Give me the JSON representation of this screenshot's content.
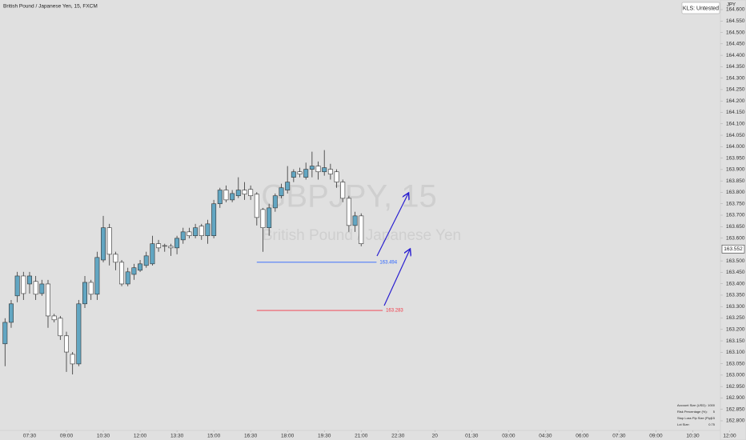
{
  "chart_data": {
    "type": "candlestick",
    "title": "British Pound / Japanese Yen, 15, FXCM",
    "currency": "JPY",
    "watermark_symbol": "GBPJPY, 15",
    "watermark_name": "British Pound / Japanese Yen",
    "badge": "KLS: Untested",
    "up_color": "#62a6c2",
    "down_color": "#ffffff",
    "outline_color": "#333333",
    "x": [
      -4,
      -3,
      -2,
      -1,
      0,
      1,
      2,
      3,
      4,
      5,
      6,
      7,
      8,
      9,
      10,
      11,
      12,
      13,
      14,
      15,
      16,
      17,
      18,
      19,
      20,
      21,
      22,
      23,
      24,
      25,
      26,
      27,
      28,
      29,
      30,
      31,
      32,
      33,
      34,
      35,
      36,
      37,
      38,
      39,
      40,
      41,
      42,
      43,
      44,
      45,
      46,
      47,
      48,
      49,
      50,
      51,
      52,
      53,
      54
    ],
    "open": [
      163.137,
      163.231,
      163.347,
      163.434,
      163.399,
      163.41,
      163.357,
      163.399,
      163.259,
      163.249,
      163.172,
      163.091,
      163.049,
      163.312,
      163.406,
      163.354,
      163.504,
      163.645,
      163.529,
      163.494,
      163.399,
      163.441,
      163.459,
      163.48,
      163.487,
      163.575,
      163.567,
      163.564,
      163.557,
      163.592,
      163.627,
      163.61,
      163.652,
      163.61,
      163.61,
      163.75,
      163.81,
      163.767,
      163.785,
      163.81,
      163.813,
      163.792,
      163.725,
      163.645,
      163.732,
      163.785,
      163.81,
      163.866,
      163.89,
      163.866,
      163.901,
      163.915,
      163.89,
      163.901,
      163.89,
      163.845,
      163.774,
      163.655,
      163.697
    ],
    "high": [
      163.249,
      163.329,
      163.452,
      163.452,
      163.452,
      163.434,
      163.417,
      163.417,
      163.268,
      163.259,
      163.19,
      163.101,
      163.329,
      163.434,
      163.417,
      163.54,
      163.697,
      163.662,
      163.54,
      163.504,
      163.47,
      163.487,
      163.504,
      163.54,
      163.61,
      163.592,
      163.575,
      163.575,
      163.61,
      163.645,
      163.645,
      163.662,
      163.662,
      163.68,
      163.767,
      163.82,
      163.83,
      163.81,
      163.866,
      163.845,
      163.83,
      163.801,
      163.732,
      163.75,
      163.795,
      163.838,
      163.915,
      163.901,
      163.908,
      163.93,
      163.978,
      163.935,
      163.985,
      163.925,
      163.901,
      163.856,
      163.785,
      163.715,
      163.708
    ],
    "low": [
      163.039,
      163.207,
      163.319,
      163.329,
      163.357,
      163.329,
      163.347,
      163.207,
      163.231,
      163.154,
      163.014,
      163.003,
      163.039,
      163.294,
      163.329,
      163.329,
      163.494,
      163.48,
      163.459,
      163.389,
      163.389,
      163.417,
      163.452,
      163.47,
      163.48,
      163.54,
      163.54,
      163.522,
      163.529,
      163.575,
      163.599,
      163.599,
      163.592,
      163.575,
      163.599,
      163.732,
      163.757,
      163.757,
      163.775,
      163.767,
      163.767,
      163.655,
      163.54,
      163.61,
      163.715,
      163.774,
      163.795,
      163.845,
      163.866,
      163.856,
      163.866,
      163.856,
      163.873,
      163.856,
      163.82,
      163.757,
      163.627,
      163.627,
      163.564
    ],
    "close": [
      163.231,
      163.312,
      163.434,
      163.357,
      163.434,
      163.354,
      163.399,
      163.259,
      163.242,
      163.172,
      163.101,
      163.049,
      163.312,
      163.406,
      163.354,
      163.515,
      163.645,
      163.529,
      163.494,
      163.399,
      163.452,
      163.47,
      163.487,
      163.522,
      163.575,
      163.557,
      163.564,
      163.557,
      163.599,
      163.627,
      163.61,
      163.645,
      163.61,
      163.662,
      163.75,
      163.81,
      163.767,
      163.795,
      163.81,
      163.792,
      163.785,
      163.69,
      163.645,
      163.732,
      163.785,
      163.82,
      163.845,
      163.89,
      163.88,
      163.901,
      163.915,
      163.89,
      163.908,
      163.88,
      163.845,
      163.774,
      163.655,
      163.697,
      163.575
    ],
    "last_price": 163.552,
    "horizontal_lines": [
      {
        "price": 163.494,
        "color": "#2962ff",
        "from": 37,
        "to": 56.5
      },
      {
        "price": 163.283,
        "color": "#f23645",
        "from": 37,
        "to": 57.5
      }
    ],
    "xlim": [
      -4.82,
      112.5
    ],
    "xticks": [
      {
        "value": 0,
        "label": "07:30"
      },
      {
        "value": 6,
        "label": "09:00"
      },
      {
        "value": 12,
        "label": "10:30"
      },
      {
        "value": 18,
        "label": "12:00"
      },
      {
        "value": 24,
        "label": "13:30"
      },
      {
        "value": 30,
        "label": "15:00"
      },
      {
        "value": 36,
        "label": "16:30"
      },
      {
        "value": 42,
        "label": "18:00"
      },
      {
        "value": 48,
        "label": "19:30"
      },
      {
        "value": 54,
        "label": "21:00"
      },
      {
        "value": 60,
        "label": "22:30"
      },
      {
        "value": 66,
        "label": "20"
      },
      {
        "value": 72,
        "label": "01:30"
      },
      {
        "value": 78,
        "label": "03:00"
      },
      {
        "value": 84,
        "label": "04:30"
      },
      {
        "value": 90,
        "label": "06:00"
      },
      {
        "value": 96,
        "label": "07:30"
      },
      {
        "value": 102,
        "label": "09:00"
      },
      {
        "value": 108,
        "label": "10:30"
      },
      {
        "value": 114,
        "label": "12:00"
      }
    ],
    "ylim": [
      162.751,
      164.642
    ],
    "yticks": [
      {
        "value": 162.8,
        "label": "162.800"
      },
      {
        "value": 162.85,
        "label": "162.850"
      },
      {
        "value": 162.9,
        "label": "162.900"
      },
      {
        "value": 162.95,
        "label": "162.950"
      },
      {
        "value": 163.0,
        "label": "163.000"
      },
      {
        "value": 163.05,
        "label": "163.050"
      },
      {
        "value": 163.1,
        "label": "163.100"
      },
      {
        "value": 163.15,
        "label": "163.150"
      },
      {
        "value": 163.2,
        "label": "163.200"
      },
      {
        "value": 163.25,
        "label": "163.250"
      },
      {
        "value": 163.3,
        "label": "163.300"
      },
      {
        "value": 163.35,
        "label": "163.350"
      },
      {
        "value": 163.4,
        "label": "163.400"
      },
      {
        "value": 163.45,
        "label": "163.450"
      },
      {
        "value": 163.5,
        "label": "163.500"
      },
      {
        "value": 163.6,
        "label": "163.600"
      },
      {
        "value": 163.65,
        "label": "163.650"
      },
      {
        "value": 163.7,
        "label": "163.700"
      },
      {
        "value": 163.75,
        "label": "163.750"
      },
      {
        "value": 163.8,
        "label": "163.800"
      },
      {
        "value": 163.85,
        "label": "163.850"
      },
      {
        "value": 163.9,
        "label": "163.900"
      },
      {
        "value": 163.95,
        "label": "163.950"
      },
      {
        "value": 164.0,
        "label": "164.000"
      },
      {
        "value": 164.05,
        "label": "164.050"
      },
      {
        "value": 164.1,
        "label": "164.100"
      },
      {
        "value": 164.15,
        "label": "164.150"
      },
      {
        "value": 164.2,
        "label": "164.200"
      },
      {
        "value": 164.25,
        "label": "164.250"
      },
      {
        "value": 164.3,
        "label": "164.300"
      },
      {
        "value": 164.35,
        "label": "164.350"
      },
      {
        "value": 164.4,
        "label": "164.400"
      },
      {
        "value": 164.45,
        "label": "164.450"
      },
      {
        "value": 164.5,
        "label": "164.500"
      },
      {
        "value": 164.55,
        "label": "164.550"
      },
      {
        "value": 164.6,
        "label": "164.600"
      }
    ],
    "grid": false
  },
  "info_table": {
    "rows": [
      [
        "Account Size (USD):",
        1000
      ],
      [
        "Risk Percentage (%):",
        5
      ],
      [
        "Stop Loss Pip Size (Pip):",
        15
      ],
      [
        "Lot Size:",
        0.75
      ]
    ]
  }
}
